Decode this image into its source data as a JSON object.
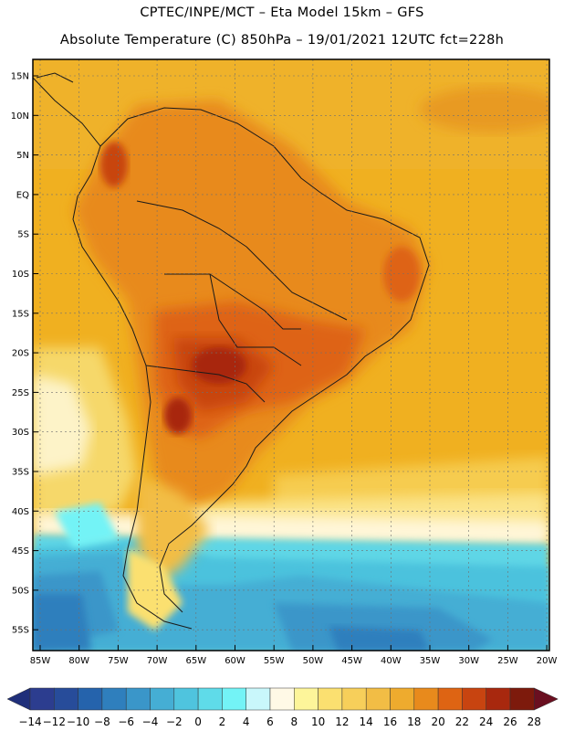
{
  "title_line1": "CPTEC/INPE/MCT –  Eta Model 15km – GFS",
  "title_line2": "Absolute Temperature (C) 850hPa – 19/01/2021 12UTC fct=228h",
  "lat_labels": [
    "15N",
    "10N",
    "5N",
    "EQ",
    "5S",
    "10S",
    "15S",
    "20S",
    "25S",
    "30S",
    "35S",
    "40S",
    "45S",
    "50S",
    "55S"
  ],
  "lon_labels": [
    "85W",
    "80W",
    "75W",
    "70W",
    "65W",
    "60W",
    "55W",
    "50W",
    "45W",
    "40W",
    "35W",
    "30W",
    "25W",
    "20W"
  ],
  "colorbar": {
    "labels": [
      "-14",
      "-12",
      "-10",
      "-8",
      "-6",
      "-4",
      "-2",
      "0",
      "2",
      "4",
      "6",
      "8",
      "10",
      "12",
      "14",
      "16",
      "18",
      "20",
      "22",
      "24",
      "26",
      "28"
    ],
    "colors": [
      "#2c3d8f",
      "#274c9a",
      "#2563ac",
      "#2f7fbd",
      "#3a96c9",
      "#45aed4",
      "#4fc4de",
      "#5fdbe9",
      "#73f3f6",
      "#c9f7fb",
      "#fff9e6",
      "#fdf59a",
      "#fbe070",
      "#f7cf5a",
      "#f2bd45",
      "#eeab2e",
      "#e88a1c",
      "#de6413",
      "#c84410",
      "#a8280e",
      "#7d1a0c"
    ]
  },
  "legend": {
    "under_color": "#1f2f7a",
    "over_color": "#6a0f20"
  }
}
